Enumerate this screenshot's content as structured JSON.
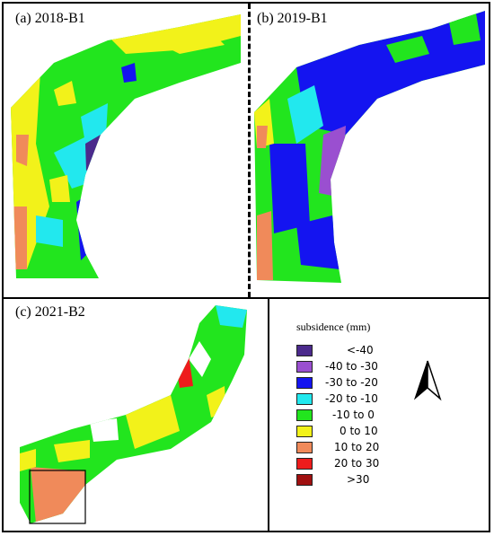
{
  "panels": [
    {
      "label": "(a) 2018-B1"
    },
    {
      "label": "(b) 2019-B1"
    },
    {
      "label": "(c) 2021-B2"
    }
  ],
  "legend": {
    "title": "subsidence (mm)",
    "items": [
      {
        "label": "<-40",
        "color": "#4b2a8c"
      },
      {
        "label": "-40  to  -30",
        "color": "#9a4fd0"
      },
      {
        "label": "-30  to  -20",
        "color": "#1414f0"
      },
      {
        "label": "-20  to  -10",
        "color": "#22e8ee"
      },
      {
        "label": "-10  to  0",
        "color": "#22e51e"
      },
      {
        "label": "0  to  10",
        "color": "#f2f21a"
      },
      {
        "label": "10  to  20",
        "color": "#f08a5a"
      },
      {
        "label": "20  to  30",
        "color": "#ee1c1c"
      },
      {
        "label": ">30",
        "color": "#a01010"
      }
    ]
  },
  "north_arrow": {
    "icon": "north-arrow-icon"
  }
}
